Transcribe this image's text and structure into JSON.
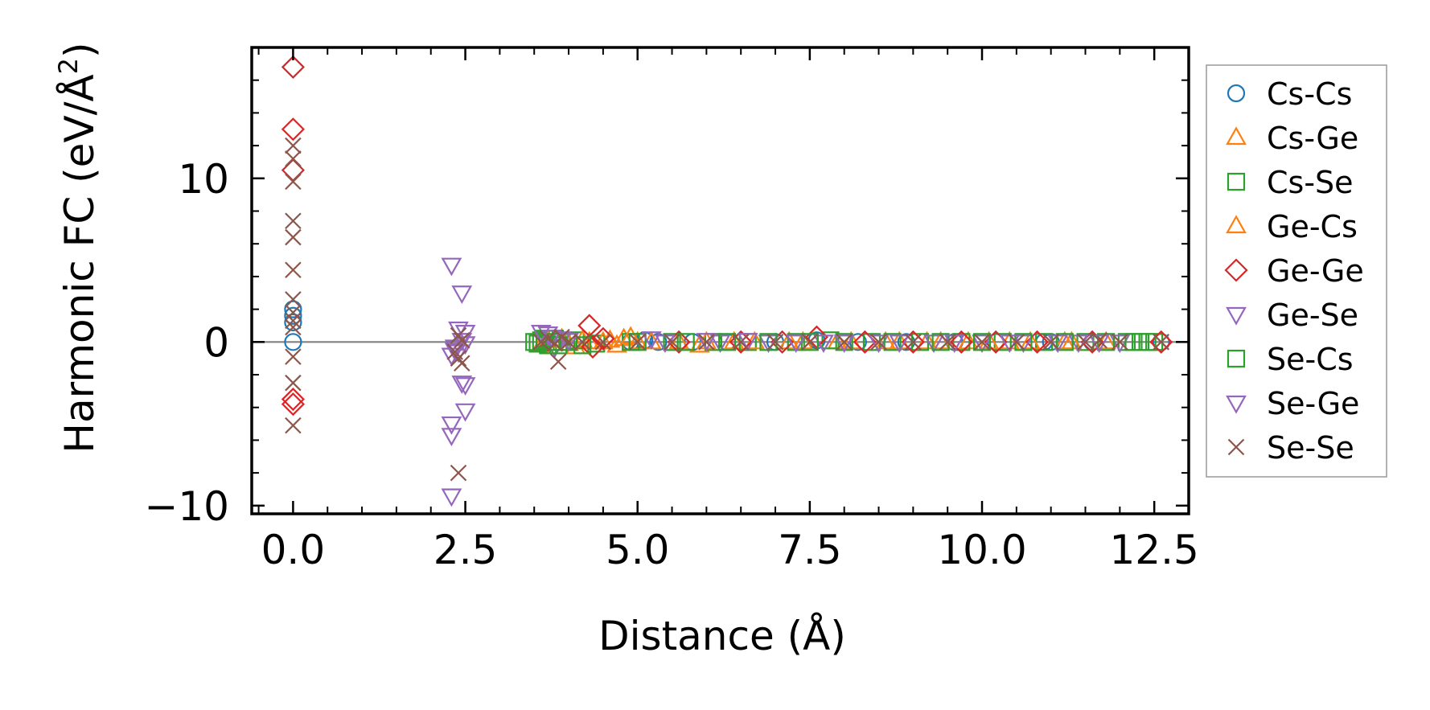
{
  "chart_data": {
    "type": "scatter",
    "title": "",
    "xlabel": "Distance (Å)",
    "ylabel_main": "Harmonic FC (eV/Å",
    "ylabel_sup": "2",
    "ylabel_close": ")",
    "xlim": [
      -0.6,
      13.0
    ],
    "ylim": [
      -10.5,
      18.0
    ],
    "xticks": [
      0.0,
      2.5,
      5.0,
      7.5,
      10.0,
      12.5
    ],
    "xtick_labels": [
      "0.0",
      "2.5",
      "5.0",
      "7.5",
      "10.0",
      "12.5"
    ],
    "yticks": [
      -10,
      0,
      10
    ],
    "ytick_labels": [
      "−10",
      "0",
      "10"
    ],
    "reference_line_y": 0,
    "legend_position": "outside-right",
    "series": [
      {
        "name": "Cs-Cs",
        "marker": "circle",
        "color": "#1f77b4",
        "points": [
          [
            0,
            0
          ],
          [
            0,
            1.2
          ],
          [
            0,
            1.6
          ],
          [
            0,
            2.0
          ],
          [
            4.9,
            0
          ],
          [
            5.1,
            0.1
          ],
          [
            5.3,
            0
          ],
          [
            5.8,
            0
          ],
          [
            6.3,
            0
          ],
          [
            7.0,
            0
          ],
          [
            7.6,
            0.1
          ],
          [
            8.2,
            0
          ],
          [
            8.9,
            0
          ],
          [
            9.6,
            0
          ],
          [
            10.2,
            0
          ],
          [
            10.9,
            0
          ],
          [
            11.0,
            0
          ],
          [
            11.6,
            0
          ],
          [
            12.6,
            0
          ]
        ]
      },
      {
        "name": "Cs-Ge",
        "marker": "triangle-up",
        "color": "#ff7f0e",
        "points": [
          [
            3.6,
            -0.2
          ],
          [
            3.9,
            0.2
          ],
          [
            4.1,
            -0.3
          ],
          [
            4.3,
            0
          ],
          [
            4.6,
            0.1
          ],
          [
            4.7,
            -0.2
          ],
          [
            4.8,
            0.2
          ],
          [
            5.0,
            0
          ],
          [
            5.6,
            0
          ],
          [
            5.9,
            -0.2
          ],
          [
            6.4,
            0
          ],
          [
            7.2,
            0
          ],
          [
            7.9,
            0
          ],
          [
            8.6,
            0
          ],
          [
            9.2,
            0
          ],
          [
            9.8,
            0
          ],
          [
            10.4,
            0
          ],
          [
            11.2,
            0
          ],
          [
            11.8,
            0
          ]
        ]
      },
      {
        "name": "Cs-Se",
        "marker": "square",
        "color": "#2ca02c",
        "points": [
          [
            3.5,
            0
          ],
          [
            3.6,
            0.1
          ],
          [
            3.7,
            -0.2
          ],
          [
            3.8,
            0.2
          ],
          [
            3.9,
            0
          ],
          [
            4.1,
            0.1
          ],
          [
            4.4,
            -0.1
          ],
          [
            4.9,
            0
          ],
          [
            5.5,
            0
          ],
          [
            6.1,
            0
          ],
          [
            6.6,
            0
          ],
          [
            7.3,
            0
          ],
          [
            7.8,
            0.1
          ],
          [
            8.4,
            0
          ],
          [
            9.1,
            0
          ],
          [
            9.7,
            0
          ],
          [
            10.3,
            0
          ],
          [
            10.9,
            0
          ],
          [
            11.5,
            0
          ],
          [
            12.1,
            0
          ],
          [
            12.3,
            0
          ],
          [
            12.5,
            0
          ]
        ]
      },
      {
        "name": "Ge-Cs",
        "marker": "triangle-up",
        "color": "#ff7f0e",
        "points": [
          [
            3.7,
            0.1
          ],
          [
            4.0,
            -0.1
          ],
          [
            4.2,
            0.1
          ],
          [
            4.5,
            0
          ],
          [
            4.9,
            0.3
          ],
          [
            5.2,
            0
          ],
          [
            6.0,
            0
          ],
          [
            6.7,
            0
          ],
          [
            7.4,
            0
          ],
          [
            8.1,
            0
          ],
          [
            8.8,
            0
          ],
          [
            9.4,
            0
          ],
          [
            10.1,
            0
          ],
          [
            10.7,
            0
          ],
          [
            11.3,
            0
          ]
        ]
      },
      {
        "name": "Ge-Ge",
        "marker": "diamond",
        "color": "#d62728",
        "points": [
          [
            0,
            16.8
          ],
          [
            0,
            13.0
          ],
          [
            0,
            10.5
          ],
          [
            0,
            -3.5
          ],
          [
            0,
            -3.8
          ],
          [
            4.3,
            1.0
          ],
          [
            4.35,
            -0.3
          ],
          [
            4.5,
            0.2
          ],
          [
            5.6,
            0
          ],
          [
            6.5,
            0
          ],
          [
            7.1,
            0
          ],
          [
            7.6,
            0.3
          ],
          [
            8.3,
            0
          ],
          [
            9.0,
            0
          ],
          [
            9.7,
            0
          ],
          [
            10.2,
            0
          ],
          [
            10.8,
            0
          ],
          [
            11.6,
            0
          ],
          [
            12.6,
            0
          ]
        ]
      },
      {
        "name": "Ge-Se",
        "marker": "triangle-down",
        "color": "#9467bd",
        "points": [
          [
            2.3,
            4.7
          ],
          [
            2.45,
            3.0
          ],
          [
            2.4,
            0.8
          ],
          [
            2.5,
            0.6
          ],
          [
            2.35,
            -0.3
          ],
          [
            2.4,
            -0.6
          ],
          [
            2.45,
            -2.5
          ],
          [
            2.5,
            -2.6
          ],
          [
            2.5,
            -4.2
          ],
          [
            2.3,
            -5.0
          ],
          [
            2.3,
            -5.7
          ],
          [
            2.3,
            -9.4
          ],
          [
            3.7,
            0.5
          ],
          [
            3.8,
            -0.3
          ],
          [
            3.9,
            0.2
          ],
          [
            5.4,
            0
          ],
          [
            6.2,
            0
          ],
          [
            6.9,
            0
          ],
          [
            7.7,
            0
          ],
          [
            8.5,
            0
          ],
          [
            9.3,
            0
          ],
          [
            10.0,
            0
          ],
          [
            10.6,
            0
          ],
          [
            11.4,
            0
          ],
          [
            12.0,
            0
          ]
        ]
      },
      {
        "name": "Se-Cs",
        "marker": "square",
        "color": "#2ca02c",
        "points": [
          [
            3.55,
            -0.1
          ],
          [
            3.65,
            0.2
          ],
          [
            3.75,
            0
          ],
          [
            3.85,
            -0.2
          ],
          [
            4.0,
            0
          ],
          [
            4.2,
            -0.2
          ],
          [
            5.0,
            0
          ],
          [
            5.7,
            0
          ],
          [
            6.3,
            0
          ],
          [
            6.9,
            0
          ],
          [
            7.5,
            0
          ],
          [
            8.0,
            0
          ],
          [
            8.7,
            0
          ],
          [
            9.4,
            0
          ],
          [
            10.0,
            0
          ],
          [
            10.6,
            0
          ],
          [
            11.2,
            0
          ],
          [
            11.8,
            0
          ],
          [
            12.2,
            0
          ],
          [
            12.4,
            0
          ]
        ]
      },
      {
        "name": "Se-Ge",
        "marker": "triangle-down",
        "color": "#9467bd",
        "points": [
          [
            2.3,
            -0.8
          ],
          [
            2.35,
            -0.5
          ],
          [
            2.45,
            0.1
          ],
          [
            2.5,
            -0.1
          ],
          [
            3.6,
            0.6
          ],
          [
            3.75,
            0.3
          ],
          [
            4.0,
            0.1
          ],
          [
            5.2,
            0.2
          ],
          [
            6.0,
            0.1
          ],
          [
            6.6,
            0.1
          ],
          [
            7.3,
            0
          ],
          [
            8.0,
            0
          ],
          [
            8.8,
            0
          ],
          [
            9.6,
            0
          ],
          [
            10.4,
            0
          ],
          [
            11.1,
            0
          ],
          [
            11.7,
            0
          ]
        ]
      },
      {
        "name": "Se-Se",
        "marker": "x",
        "color": "#8c564b",
        "points": [
          [
            0,
            12.0
          ],
          [
            0,
            11.2
          ],
          [
            0,
            9.8
          ],
          [
            0,
            7.4
          ],
          [
            0,
            6.4
          ],
          [
            0,
            4.4
          ],
          [
            0,
            2.6
          ],
          [
            0,
            1.8
          ],
          [
            0,
            1.3
          ],
          [
            0,
            0.9
          ],
          [
            0,
            -0.9
          ],
          [
            0,
            -2.5
          ],
          [
            0,
            -5.1
          ],
          [
            2.4,
            0.4
          ],
          [
            2.45,
            0.1
          ],
          [
            2.35,
            -0.6
          ],
          [
            2.4,
            -1.0
          ],
          [
            2.45,
            -1.3
          ],
          [
            2.4,
            -8.0
          ],
          [
            3.6,
            0
          ],
          [
            3.7,
            0.2
          ],
          [
            3.8,
            -0.1
          ],
          [
            3.9,
            0.3
          ],
          [
            4.0,
            0
          ],
          [
            3.85,
            -1.2
          ],
          [
            4.2,
            0
          ],
          [
            4.5,
            0
          ],
          [
            5.0,
            0
          ],
          [
            5.5,
            0
          ],
          [
            6.0,
            0
          ],
          [
            6.5,
            0
          ],
          [
            7.0,
            0
          ],
          [
            7.5,
            0
          ],
          [
            8.0,
            0
          ],
          [
            8.5,
            0
          ],
          [
            9.0,
            0
          ],
          [
            9.5,
            0
          ],
          [
            10.0,
            0
          ],
          [
            10.5,
            0
          ],
          [
            11.0,
            0
          ],
          [
            11.5,
            0
          ],
          [
            11.7,
            0.1
          ],
          [
            12.0,
            0
          ],
          [
            12.6,
            0
          ]
        ]
      }
    ]
  }
}
